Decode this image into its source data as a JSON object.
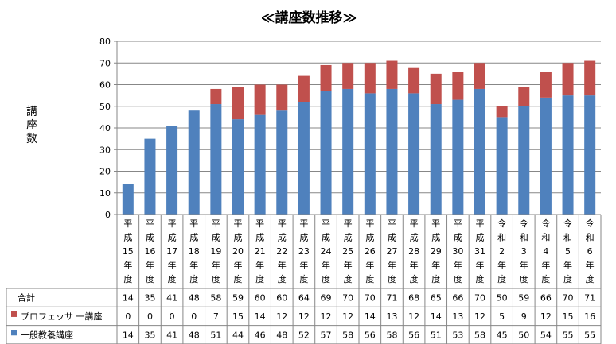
{
  "chart_data": {
    "type": "bar",
    "stacked": true,
    "title": "≪講座数推移≫",
    "ylabel": "講座数",
    "ylim": [
      0,
      80
    ],
    "yticks": [
      0,
      10,
      20,
      30,
      40,
      50,
      60,
      70,
      80
    ],
    "categories": [
      [
        "平",
        "成",
        "15",
        "年",
        "度"
      ],
      [
        "平",
        "成",
        "16",
        "年",
        "度"
      ],
      [
        "平",
        "成",
        "17",
        "年",
        "度"
      ],
      [
        "平",
        "成",
        "18",
        "年",
        "度"
      ],
      [
        "平",
        "成",
        "19",
        "年",
        "度"
      ],
      [
        "平",
        "成",
        "20",
        "年",
        "度"
      ],
      [
        "平",
        "成",
        "21",
        "年",
        "度"
      ],
      [
        "平",
        "成",
        "22",
        "年",
        "度"
      ],
      [
        "平",
        "成",
        "23",
        "年",
        "度"
      ],
      [
        "平",
        "成",
        "24",
        "年",
        "度"
      ],
      [
        "平",
        "成",
        "25",
        "年",
        "度"
      ],
      [
        "平",
        "成",
        "26",
        "年",
        "度"
      ],
      [
        "平",
        "成",
        "27",
        "年",
        "度"
      ],
      [
        "平",
        "成",
        "28",
        "年",
        "度"
      ],
      [
        "平",
        "成",
        "29",
        "年",
        "度"
      ],
      [
        "平",
        "成",
        "30",
        "年",
        "度"
      ],
      [
        "平",
        "成",
        "31",
        "年",
        "度"
      ],
      [
        "令",
        "和",
        "2",
        "年",
        "度"
      ],
      [
        "令",
        "和",
        "3",
        "年",
        "度"
      ],
      [
        "令",
        "和",
        "4",
        "年",
        "度"
      ],
      [
        "令",
        "和",
        "5",
        "年",
        "度"
      ],
      [
        "令",
        "和",
        "6",
        "年",
        "度"
      ]
    ],
    "total": {
      "name": "合計",
      "values": [
        14,
        35,
        41,
        48,
        58,
        59,
        60,
        60,
        64,
        69,
        70,
        70,
        71,
        68,
        65,
        66,
        70,
        50,
        59,
        66,
        70,
        71
      ]
    },
    "series": [
      {
        "name": "一般教養講座",
        "color": "#4F81BD",
        "values": [
          14,
          35,
          41,
          48,
          51,
          44,
          46,
          48,
          52,
          57,
          58,
          56,
          58,
          56,
          51,
          53,
          58,
          45,
          50,
          54,
          55,
          55
        ]
      },
      {
        "name": "プロフェッサ 一講座",
        "color": "#C0504D",
        "values": [
          0,
          0,
          0,
          0,
          7,
          15,
          14,
          12,
          12,
          12,
          12,
          14,
          13,
          12,
          14,
          13,
          12,
          5,
          9,
          12,
          15,
          16
        ]
      }
    ],
    "grid": true,
    "legend": "data-table"
  }
}
